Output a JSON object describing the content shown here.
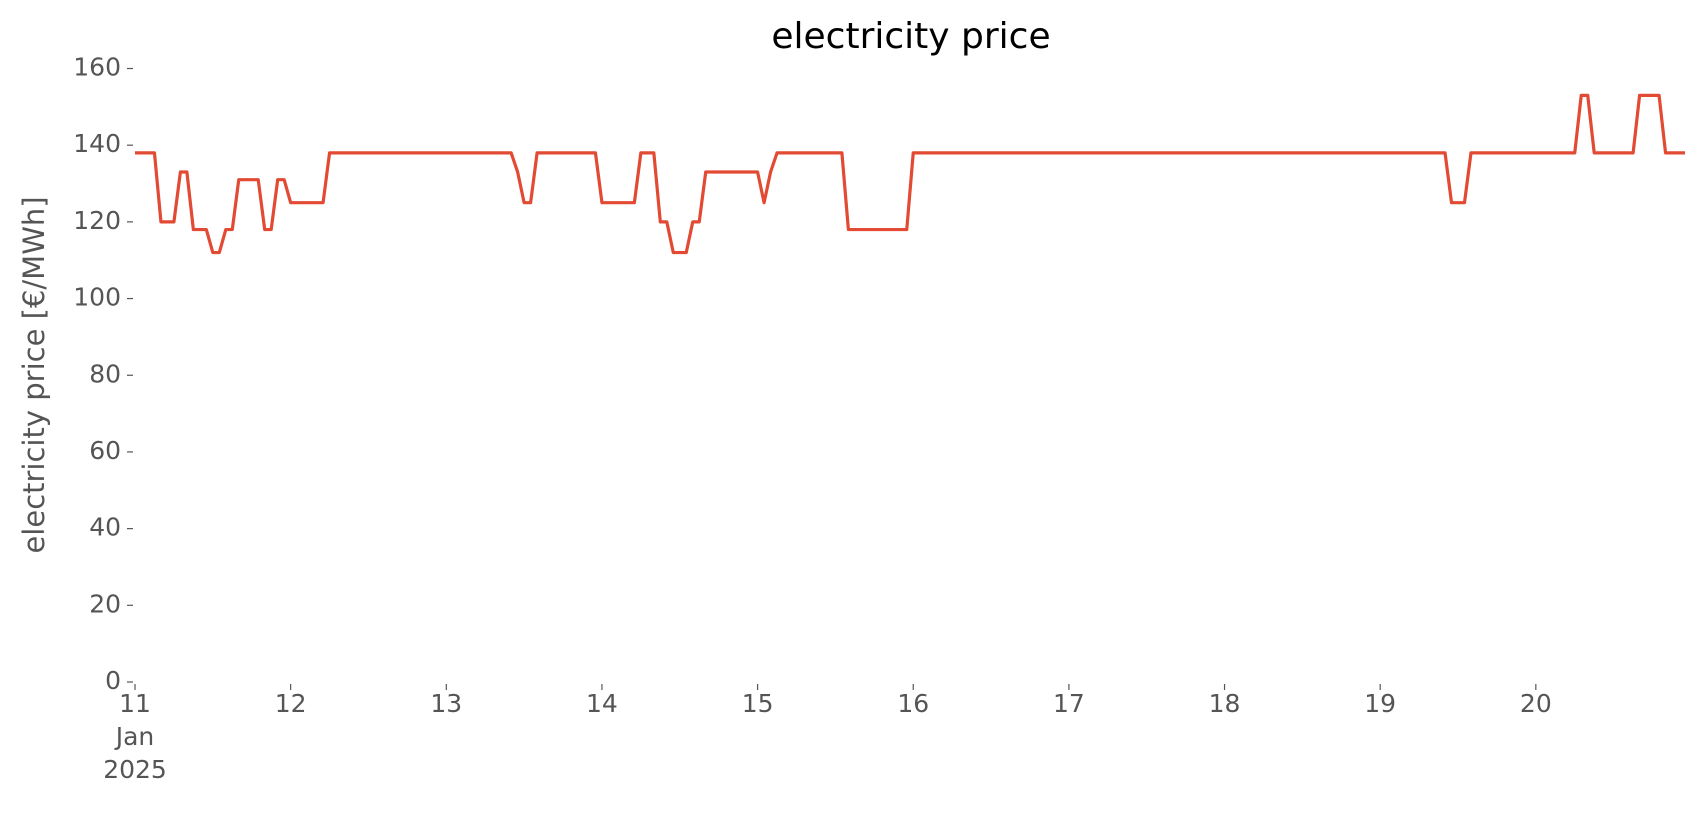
{
  "chart_data": {
    "type": "line",
    "title": "electricity price",
    "y_label": "electricity price [€/MWh]",
    "x": [
      0,
      3,
      4,
      6,
      7,
      8,
      9,
      11,
      12,
      13,
      14,
      15,
      16,
      19,
      20,
      21,
      22,
      23,
      24,
      29,
      30,
      58,
      59,
      60,
      61,
      62,
      71,
      72,
      77,
      78,
      80,
      81,
      82,
      83,
      85,
      86,
      87,
      88,
      96,
      97,
      98,
      99,
      109,
      110,
      119,
      120,
      202,
      203,
      205,
      206,
      222,
      223,
      224,
      225,
      231,
      232,
      235,
      236,
      239
    ],
    "values": [
      138,
      138,
      120,
      120,
      133,
      133,
      118,
      118,
      112,
      112,
      118,
      118,
      131,
      131,
      118,
      118,
      131,
      131,
      125,
      125,
      138,
      138,
      133,
      125,
      125,
      138,
      138,
      125,
      125,
      138,
      138,
      120,
      120,
      112,
      112,
      120,
      120,
      133,
      133,
      125,
      133,
      138,
      138,
      118,
      118,
      138,
      138,
      125,
      125,
      138,
      138,
      153,
      153,
      138,
      138,
      153,
      153,
      138,
      138
    ],
    "color": "#e24a33",
    "xlim": [
      0,
      239
    ],
    "xticks": [
      {
        "value": 0,
        "label": "11\nJan\n2025"
      },
      {
        "value": 24,
        "label": "12"
      },
      {
        "value": 48,
        "label": "13"
      },
      {
        "value": 72,
        "label": "14"
      },
      {
        "value": 96,
        "label": "15"
      },
      {
        "value": 120,
        "label": "16"
      },
      {
        "value": 144,
        "label": "17"
      },
      {
        "value": 168,
        "label": "18"
      },
      {
        "value": 192,
        "label": "19"
      },
      {
        "value": 216,
        "label": "20"
      }
    ],
    "ylim": [
      0,
      160
    ],
    "yticks": [
      0,
      20,
      40,
      60,
      80,
      100,
      120,
      140,
      160
    ],
    "grid": false
  }
}
